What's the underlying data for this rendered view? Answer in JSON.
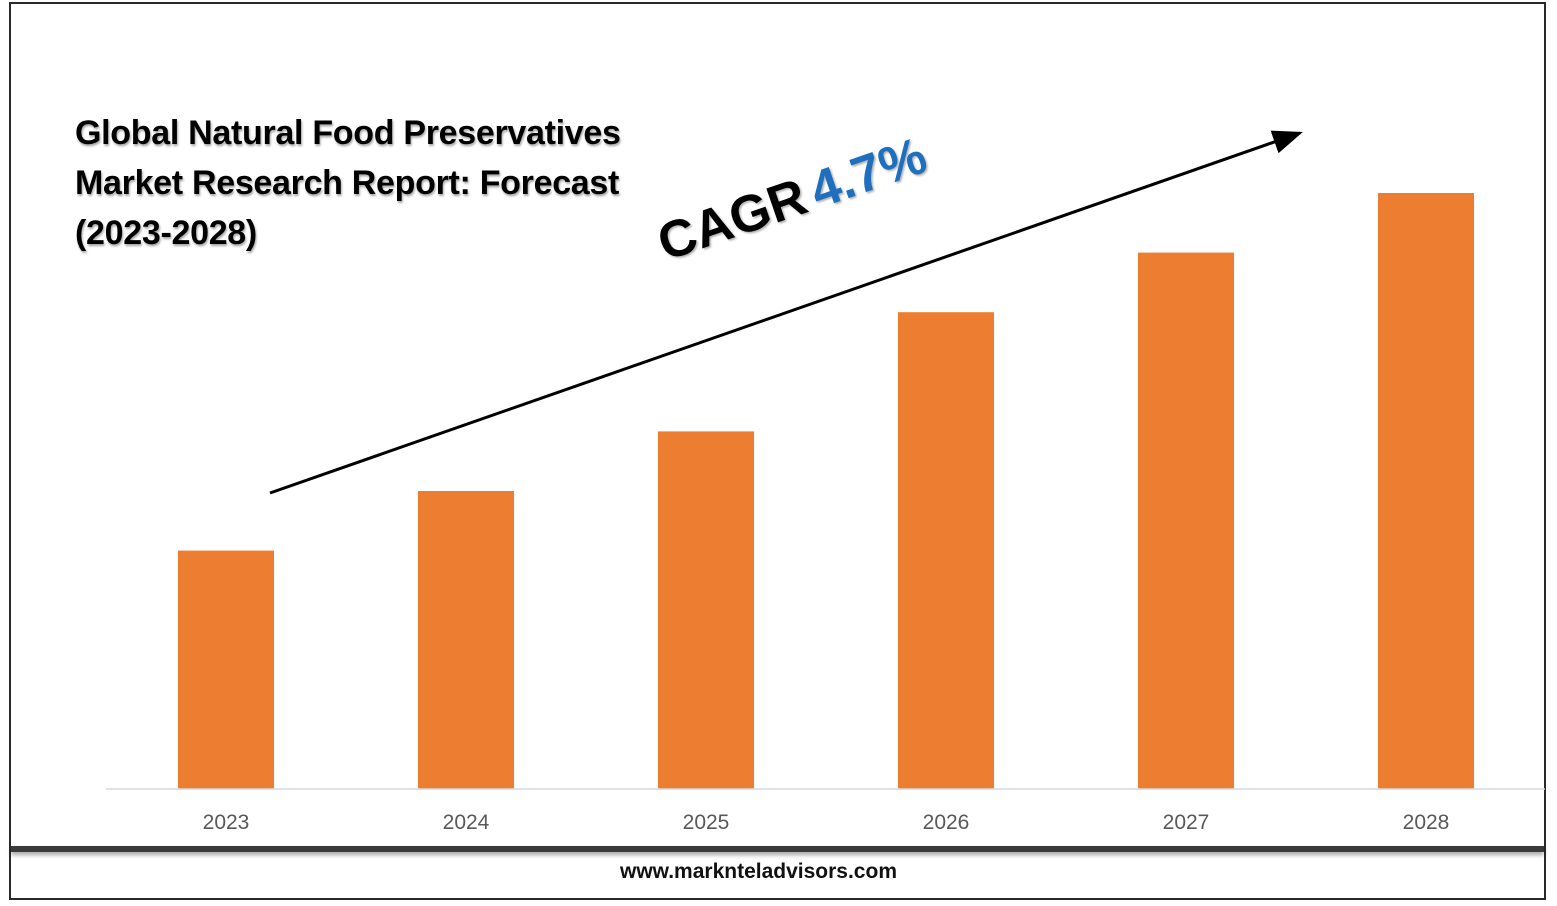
{
  "title_lines": [
    "Global Natural Food Preservatives",
    "Market Research Report: Forecast",
    "(2023-2028)"
  ],
  "annotation": {
    "label": "CAGR",
    "value": "4.7%",
    "value_color": "#1f6fbf"
  },
  "footer": {
    "url": "www.markntеladvisors.com"
  },
  "colors": {
    "bar": "#ed7d31",
    "axis": "#d9d9d9",
    "tick_text": "#595959"
  },
  "chart_data": {
    "type": "bar",
    "title": "Global Natural Food Preservatives Market Research Report: Forecast (2023-2028)",
    "categories": [
      "2023",
      "2024",
      "2025",
      "2026",
      "2027",
      "2028"
    ],
    "values": [
      40,
      50,
      60,
      80,
      90,
      100
    ],
    "ylim": [
      0,
      100
    ],
    "xlabel": "",
    "ylabel": "",
    "grid": false,
    "legend": "none",
    "y_axis_shown": false
  }
}
